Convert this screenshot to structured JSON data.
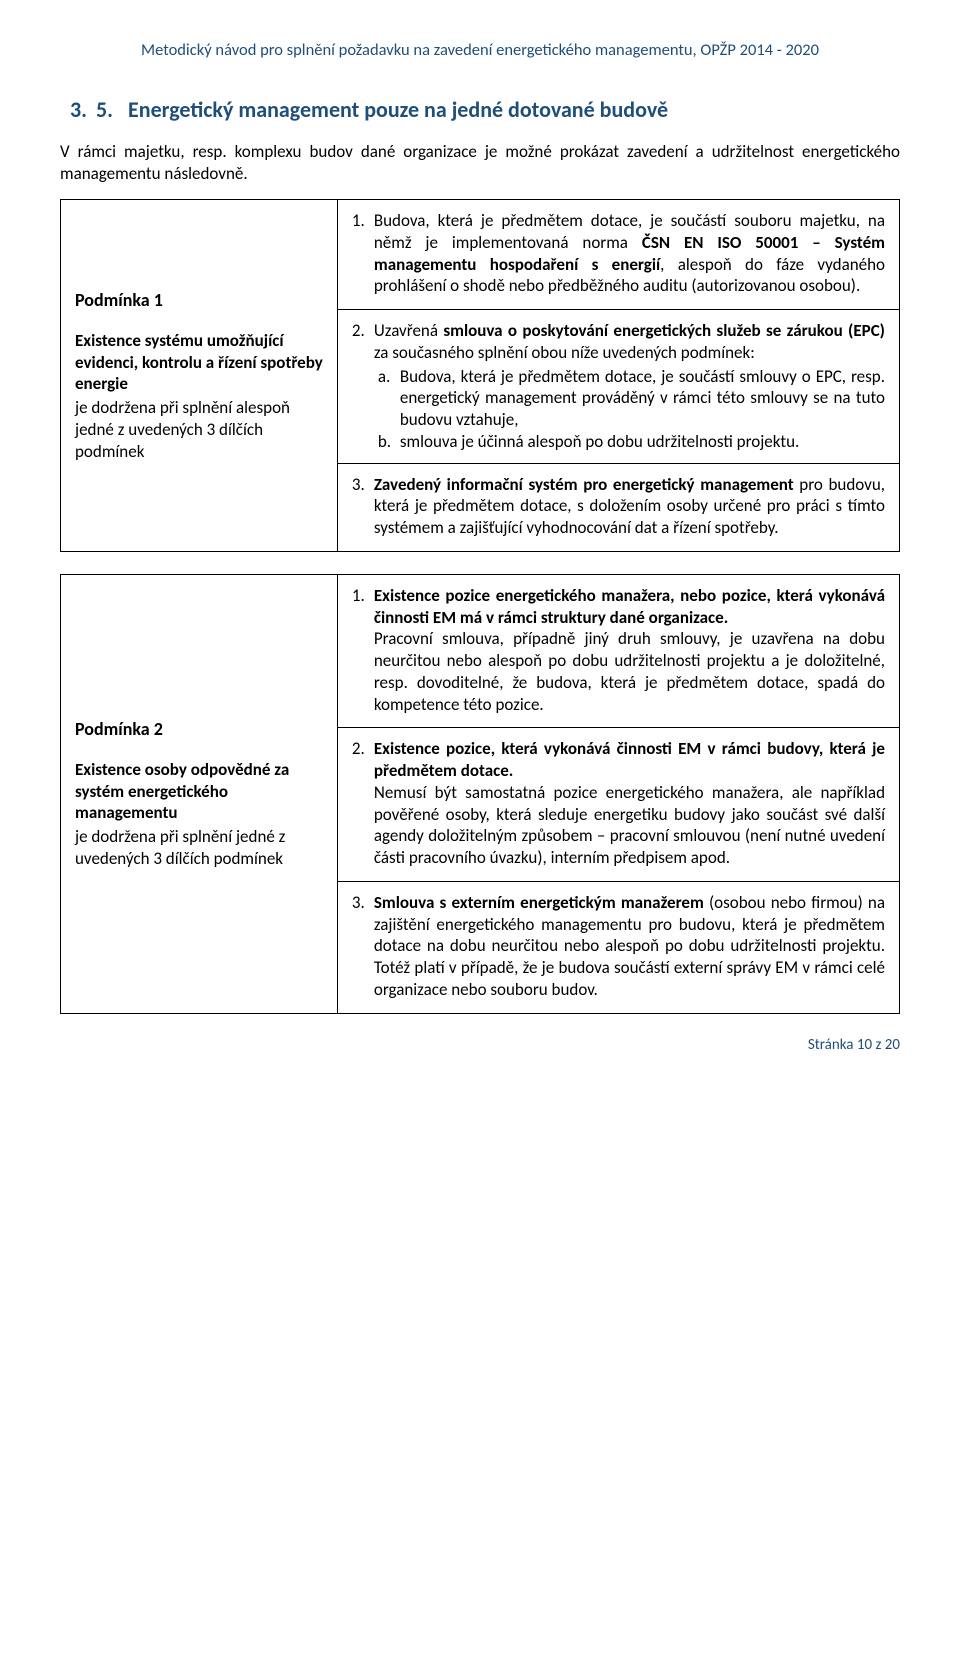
{
  "header": "Metodický návod pro splnění požadavku na zavedení energetického managementu, OPŽP 2014 - 2020",
  "section": {
    "num1": "3.",
    "num2": "5.",
    "title": "Energetický management pouze na jedné dotované budově"
  },
  "intro": "V rámci majetku, resp. komplexu budov dané organizace je možné prokázat zavedení a udržitelnost energetického managementu následovně.",
  "cond1": {
    "title": "Podmínka 1",
    "subBold": "Existence systému umožňující evidenci, kontrolu a řízení spotřeby energie",
    "subPlain": "je dodržena při splnění alespoň jedné z uvedených 3 dílčích podmínek",
    "r1_pre": "Budova, která je předmětem dotace, je součástí souboru majetku, na němž je implementovaná norma ",
    "r1_bold": "ČSN EN ISO 50001 – Systém managementu hospodaření s energií",
    "r1_post": ", alespoň do fáze vydaného prohlášení o shodě nebo předběžného auditu (autorizovanou osobou).",
    "r2_pre": "Uzavřená ",
    "r2_bold": "smlouva o poskytování energetických služeb se zárukou (EPC)",
    "r2_post": " za současného splnění obou níže uvedených podmínek:",
    "r2a": "Budova, která je předmětem dotace, je součástí smlouvy o EPC, resp. energetický management prováděný v rámci této smlouvy se na tuto budovu vztahuje,",
    "r2b": "smlouva je účinná alespoň po dobu udržitelnosti projektu.",
    "r3_bold": "Zavedený informační systém pro energetický management",
    "r3_post": " pro budovu, která je předmětem dotace, s doložením osoby určené pro práci s tímto systémem a zajišťující vyhodnocování dat a řízení spotřeby."
  },
  "cond2": {
    "title": "Podmínka 2",
    "subBold": "Existence osoby odpovědné za systém energetického managementu",
    "subPlain": "je dodržena při splnění jedné z uvedených 3 dílčích podmínek",
    "r1_bold": "Existence pozice energetického manažera, nebo pozice, která vykonává činnosti EM má v rámci struktury dané organizace.",
    "r1_post": "Pracovní smlouva, případně jiný druh smlouvy, je uzavřena na dobu neurčitou nebo alespoň po dobu udržitelnosti projektu a je doložitelné, resp. dovoditelné, že budova, která je předmětem dotace, spadá do kompetence této pozice.",
    "r2_bold": "Existence pozice, která vykonává činnosti EM v rámci budovy, která je předmětem dotace.",
    "r2_post": "Nemusí být samostatná pozice energetického manažera, ale například pověřené osoby, která sleduje energetiku budovy jako součást své další agendy doložitelným způsobem – pracovní smlouvou (není nutné uvedení části pracovního úvazku), interním předpisem apod.",
    "r3_bold": "Smlouva s externím energetickým manažerem",
    "r3_post": " (osobou nebo firmou) na zajištění energetického managementu pro budovu, která je předmětem dotace na dobu neurčitou nebo alespoň po dobu udržitelnosti projektu. Totéž platí v případě, že je budova součástí externí správy EM v rámci celé organizace nebo souboru budov."
  },
  "footer": "Stránka 10 z 20",
  "labels": {
    "n1": "1.",
    "n2": "2.",
    "n3": "3.",
    "a": "a.",
    "b": "b."
  }
}
